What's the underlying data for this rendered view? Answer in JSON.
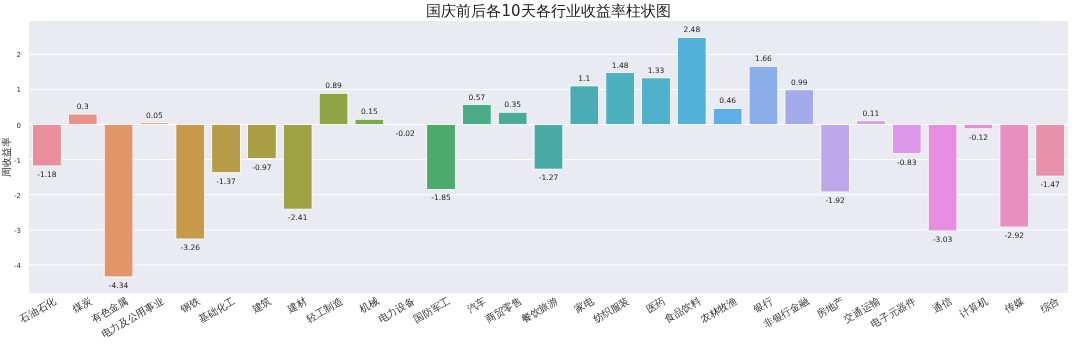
{
  "chart_data": {
    "type": "bar",
    "title": "国庆前后各10天各行业收益率柱状图",
    "ylabel": "周收益率",
    "categories": [
      "石油石化",
      "煤炭",
      "有色金属",
      "电力及公用事业",
      "钢铁",
      "基础化工",
      "建筑",
      "建材",
      "轻工制造",
      "机械",
      "电力设备",
      "国防军工",
      "汽车",
      "商贸零售",
      "餐饮旅游",
      "家电",
      "纺织服装",
      "医药",
      "食品饮料",
      "农林牧渔",
      "银行",
      "非银行金融",
      "房地产",
      "交通运输",
      "电子元器件",
      "通信",
      "计算机",
      "传媒",
      "综合"
    ],
    "values": [
      -1.18,
      0.3,
      -4.34,
      0.05,
      -3.26,
      -1.37,
      -0.97,
      -2.41,
      0.89,
      0.15,
      -0.02,
      -1.85,
      0.57,
      0.35,
      -1.27,
      1.1,
      1.48,
      1.33,
      2.48,
      0.46,
      1.66,
      0.99,
      -1.92,
      0.11,
      -0.83,
      -3.03,
      -0.12,
      -2.92,
      -1.47
    ],
    "colors": [
      "#e98f9c",
      "#e9938a",
      "#e3956a",
      "#dba064",
      "#c79a4a",
      "#b69c48",
      "#aa9e45",
      "#9fa145",
      "#8ea445",
      "#7aa84a",
      "#5aa94f",
      "#4aab6d",
      "#49ab87",
      "#4aab98",
      "#4aaba6",
      "#4bacb3",
      "#4db0be",
      "#4fb0c9",
      "#52b0d9",
      "#5eaee8",
      "#8aaee9",
      "#a5aaeb",
      "#bda8ec",
      "#cfa4ec",
      "#de98eb",
      "#e68fe0",
      "#e88fd2",
      "#e88ec0",
      "#e890ac"
    ],
    "ylim": [
      -4.8,
      2.95
    ],
    "yticks": [
      -4,
      -3,
      -2,
      -1,
      0,
      1,
      2
    ],
    "grid": "y",
    "data_labels": true
  }
}
